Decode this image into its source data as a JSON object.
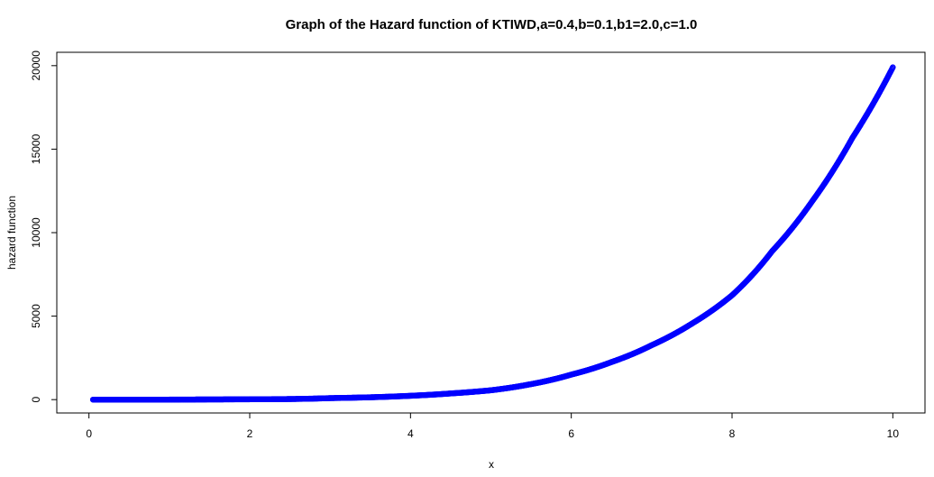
{
  "chart_data": {
    "type": "scatter",
    "title": "Graph of the Hazard function of KTIWD,a=0.4,b=0.1,b1=2.0,c=1.0",
    "xlabel": "x",
    "ylabel": "hazard function",
    "xlim": [
      -0.4,
      10.4
    ],
    "ylim": [
      -800,
      20800
    ],
    "x_ticks": [
      0,
      2,
      4,
      6,
      8,
      10
    ],
    "y_ticks": [
      0,
      5000,
      10000,
      15000,
      20000
    ],
    "x_tick_labels": [
      "0",
      "2",
      "4",
      "6",
      "8",
      "10"
    ],
    "y_tick_labels": [
      "0",
      "5000",
      "10000",
      "15000",
      "20000"
    ],
    "grid": false,
    "marker": "open-circle",
    "series": [
      {
        "color": "#0000ff",
        "x": [
          0.05,
          1,
          2,
          2.5,
          3,
          3.5,
          4,
          4.5,
          5,
          5.5,
          6,
          6.5,
          7,
          7.5,
          8,
          8.5,
          9,
          9.5,
          10
        ],
        "y": [
          0,
          0,
          20,
          35,
          90,
          140,
          230,
          370,
          560,
          930,
          1500,
          2250,
          3260,
          4550,
          6250,
          8900,
          11900,
          15700,
          19900
        ]
      }
    ]
  }
}
